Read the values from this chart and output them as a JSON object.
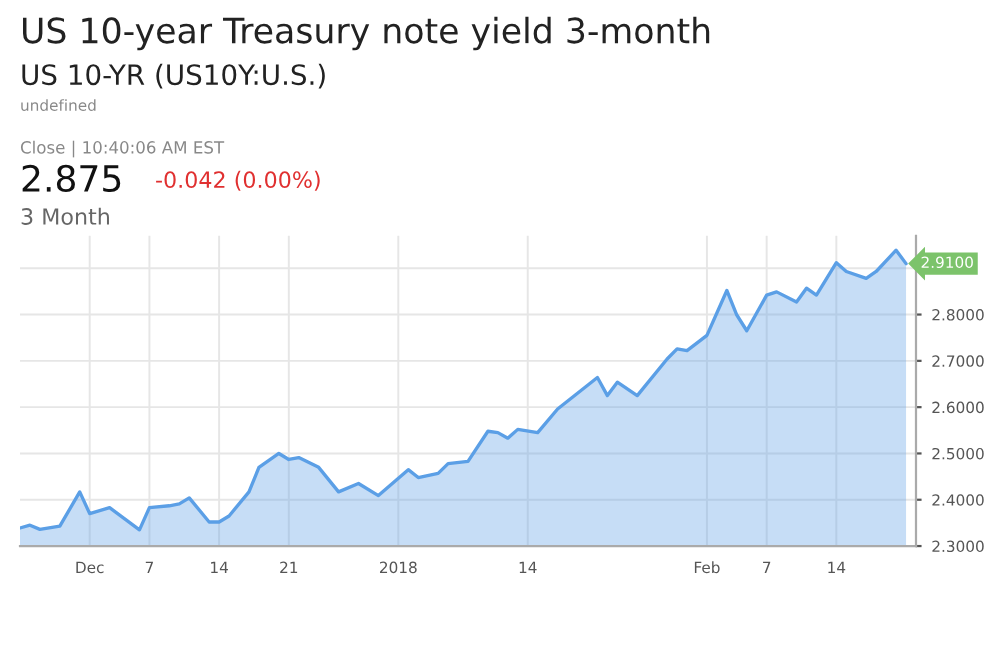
{
  "chart_data": {
    "type": "area",
    "title": "US 10-year Treasury note yield 3-month",
    "subtitle": "US 10-YR (US10Y:U.S.)",
    "annotations": [
      "undefined",
      "Close | 10:40:06 AM EST",
      "2.875",
      "-0.042 (0.00%)",
      "3 Month",
      {
        "text": "2.9100",
        "x": "2018-02-21",
        "y": 2.91
      }
    ],
    "x": [
      "2017-11-24",
      "2017-11-25",
      "2017-11-26",
      "2017-11-28",
      "2017-11-30",
      "2017-12-01",
      "2017-12-03",
      "2017-12-06",
      "2017-12-07",
      "2017-12-09",
      "2017-12-10",
      "2017-12-11",
      "2017-12-13",
      "2017-12-14",
      "2017-12-15",
      "2017-12-17",
      "2017-12-18",
      "2017-12-20",
      "2017-12-21",
      "2017-12-22",
      "2017-12-24",
      "2017-12-26",
      "2017-12-28",
      "2017-12-30",
      "2018-01-02",
      "2018-01-03",
      "2018-01-05",
      "2018-01-06",
      "2018-01-08",
      "2018-01-10",
      "2018-01-11",
      "2018-01-12",
      "2018-01-13",
      "2018-01-15",
      "2018-01-17",
      "2018-01-21",
      "2018-01-22",
      "2018-01-23",
      "2018-01-25",
      "2018-01-28",
      "2018-01-29",
      "2018-01-30",
      "2018-02-01",
      "2018-02-03",
      "2018-02-04",
      "2018-02-05",
      "2018-02-07",
      "2018-02-08",
      "2018-02-10",
      "2018-02-11",
      "2018-02-12",
      "2018-02-14",
      "2018-02-15",
      "2018-02-17",
      "2018-02-18",
      "2018-02-20",
      "2018-02-21"
    ],
    "series": [
      {
        "color": "#5b9fe6",
        "values": [
          2.339,
          2.345,
          2.336,
          2.343,
          2.417,
          2.37,
          2.383,
          2.335,
          2.383,
          2.387,
          2.391,
          2.404,
          2.352,
          2.352,
          2.365,
          2.417,
          2.47,
          2.5,
          2.487,
          2.491,
          2.47,
          2.417,
          2.435,
          2.409,
          2.465,
          2.448,
          2.457,
          2.478,
          2.483,
          2.548,
          2.545,
          2.533,
          2.552,
          2.545,
          2.596,
          2.664,
          2.625,
          2.654,
          2.625,
          2.704,
          2.726,
          2.722,
          2.755,
          2.852,
          2.799,
          2.765,
          2.842,
          2.849,
          2.827,
          2.857,
          2.842,
          2.912,
          2.893,
          2.878,
          2.893,
          2.939,
          2.91
        ]
      }
    ],
    "xlim": [
      "2017-11-24",
      "2018-02-22"
    ],
    "xticks": [
      {
        "value": "2017-12-01",
        "label": "Dec"
      },
      {
        "value": "2017-12-07",
        "label": "7"
      },
      {
        "value": "2017-12-14",
        "label": "14"
      },
      {
        "value": "2017-12-21",
        "label": "21"
      },
      {
        "value": "2018-01-01",
        "label": "2018"
      },
      {
        "value": "2018-01-14",
        "label": "14"
      },
      {
        "value": "2018-02-01",
        "label": "Feb"
      },
      {
        "value": "2018-02-07",
        "label": "7"
      },
      {
        "value": "2018-02-14",
        "label": "14"
      }
    ],
    "ylim": [
      2.3,
      2.97
    ],
    "yticks": [
      {
        "value": 2.3,
        "label": "2.3000"
      },
      {
        "value": 2.4,
        "label": "2.4000"
      },
      {
        "value": 2.5,
        "label": "2.5000"
      },
      {
        "value": 2.6,
        "label": "2.6000"
      },
      {
        "value": 2.7,
        "label": "2.7000"
      },
      {
        "value": 2.8,
        "label": "2.8000"
      },
      {
        "value": 2.9,
        "label": null
      }
    ],
    "grid": true,
    "legend": false
  }
}
